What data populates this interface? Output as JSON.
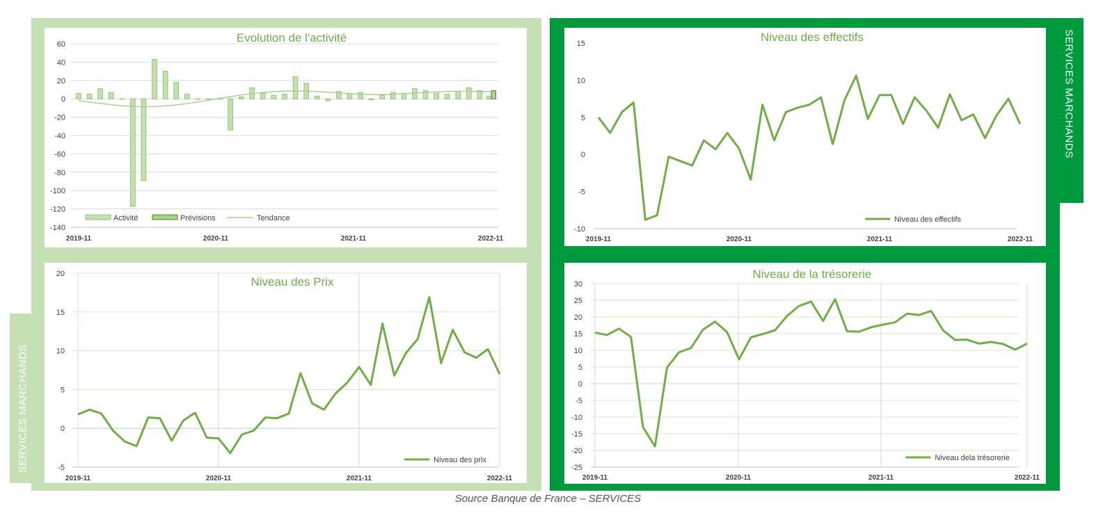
{
  "colors": {
    "light_frame": "#c5e0b4",
    "dark_frame": "#009a3e",
    "line": "#70ad47",
    "title": "#70ad47",
    "bar_fill": "#c5e0b4",
    "bar_stroke": "#8fc46a",
    "forecast_fill": "#a9d18e",
    "forecast_stroke": "#548235",
    "trend": "#a9d18e",
    "grid": "#d9d9d9",
    "tick": "#404040"
  },
  "labels": {
    "side_top": "SERVICES MARCHANDS",
    "side_bottom": "SERVICES MARCHANDS",
    "source": "Source Banque de France – SERVICES"
  },
  "chart_data": [
    {
      "id": "activite",
      "type": "bar",
      "title": "Evolution de l'activité",
      "ylim": [
        -140,
        60
      ],
      "yticks": [
        60,
        40,
        20,
        0,
        -20,
        -40,
        -60,
        -80,
        -100,
        -120,
        -140
      ],
      "xtick_labels": [
        "2019-11",
        "2020-11",
        "2021-11",
        "2022-11"
      ],
      "grid": "horizontal",
      "legend": [
        "Activité",
        "Prévisions",
        "Tendance"
      ],
      "legend_position": "bottom-left",
      "series": [
        {
          "name": "Activité",
          "values": [
            6,
            5,
            11,
            7,
            0,
            -117,
            -89,
            43,
            30,
            18,
            5,
            0,
            0,
            0,
            -34,
            2,
            12,
            6,
            4,
            5,
            24,
            17,
            3,
            -2,
            8,
            6,
            7,
            -1,
            4,
            7,
            6,
            11,
            9,
            6,
            5,
            8,
            12,
            9,
            3
          ]
        },
        {
          "name": "Prévisions",
          "values": [
            null,
            null,
            null,
            null,
            null,
            null,
            null,
            null,
            null,
            null,
            null,
            null,
            null,
            null,
            null,
            null,
            null,
            null,
            null,
            null,
            null,
            null,
            null,
            null,
            null,
            null,
            null,
            null,
            null,
            null,
            null,
            null,
            null,
            null,
            null,
            null,
            null,
            null,
            9
          ]
        },
        {
          "name": "Tendance",
          "values": [
            -2,
            -3.5,
            -5,
            -6.5,
            -7.5,
            -8.3,
            -8.6,
            -8.4,
            -7.7,
            -6.6,
            -5.1,
            -3.4,
            -1.5,
            0.5,
            2.4,
            4.1,
            5.6,
            6.9,
            7.8,
            8.4,
            8.6,
            8.4,
            7.9,
            7.2,
            6.4,
            5.6,
            5,
            4.7,
            4.7,
            5,
            5.6,
            6.3,
            7,
            7.6,
            8,
            8.2,
            8.2,
            8,
            7.8
          ]
        }
      ]
    },
    {
      "id": "effectifs",
      "type": "line",
      "title": "Niveau des effectifs",
      "ylim": [
        -10,
        15
      ],
      "yticks": [
        15,
        10,
        5,
        0,
        -5,
        -10
      ],
      "xtick_labels": [
        "2019-11",
        "2020-11",
        "2021-11",
        "2022-11"
      ],
      "grid": "none",
      "legend_position": "bottom-right",
      "series": [
        {
          "name": "Niveau des effectifs",
          "values": [
            5,
            2.9,
            5.7,
            7,
            -8.8,
            -8.2,
            -0.3,
            -0.9,
            -1.5,
            1.9,
            0.7,
            2.9,
            0.8,
            -3.4,
            6.7,
            1.9,
            5.7,
            6.3,
            6.7,
            7.7,
            1.4,
            7.3,
            10.6,
            4.8,
            8,
            8,
            4.1,
            7.7,
            5.9,
            3.6,
            8.1,
            4.6,
            5.4,
            2.2,
            5.3,
            7.5,
            4.1
          ]
        }
      ]
    },
    {
      "id": "prix",
      "type": "line",
      "title": "Niveau des Prix",
      "ylim": [
        -5,
        20
      ],
      "yticks": [
        20,
        15,
        10,
        5,
        0,
        -5
      ],
      "xtick_labels": [
        "2019-11",
        "2020-11",
        "2021-11",
        "2022-11"
      ],
      "grid": "horizontal",
      "legend_position": "bottom-right",
      "series": [
        {
          "name": "Niveau des prix",
          "values": [
            1.8,
            2.4,
            1.9,
            -0.3,
            -1.7,
            -2.3,
            1.4,
            1.3,
            -1.6,
            1,
            2,
            -1.2,
            -1.3,
            -3.2,
            -0.8,
            -0.3,
            1.4,
            1.3,
            1.9,
            7.1,
            3.2,
            2.4,
            4.5,
            5.9,
            7.9,
            5.6,
            13.5,
            6.8,
            9.7,
            11.5,
            16.9,
            8.4,
            12.7,
            9.8,
            9.1,
            10.2,
            7
          ]
        }
      ]
    },
    {
      "id": "tresorerie",
      "type": "line",
      "title": "Niveau de la trésorerie",
      "ylim": [
        -25,
        30
      ],
      "yticks": [
        30,
        25,
        20,
        15,
        10,
        5,
        0,
        -5,
        -10,
        -15,
        -20,
        -25
      ],
      "xtick_labels": [
        "2019-11",
        "2020-11",
        "2021-11",
        "2022-11"
      ],
      "grid": "horizontal",
      "legend_position": "bottom-right",
      "series": [
        {
          "name": "Niveau dela trésorerie",
          "values": [
            15.3,
            14.6,
            16.5,
            14,
            -13,
            -18.8,
            4.8,
            9.4,
            10.7,
            16.2,
            18.6,
            15.5,
            7.3,
            13.9,
            14.9,
            16,
            20.3,
            23.3,
            24.6,
            18.8,
            25.3,
            15.7,
            15.6,
            16.9,
            17.7,
            18.4,
            21,
            20.6,
            21.8,
            16,
            13.1,
            13.2,
            12,
            12.5,
            11.9,
            10.2,
            12
          ]
        }
      ]
    }
  ]
}
